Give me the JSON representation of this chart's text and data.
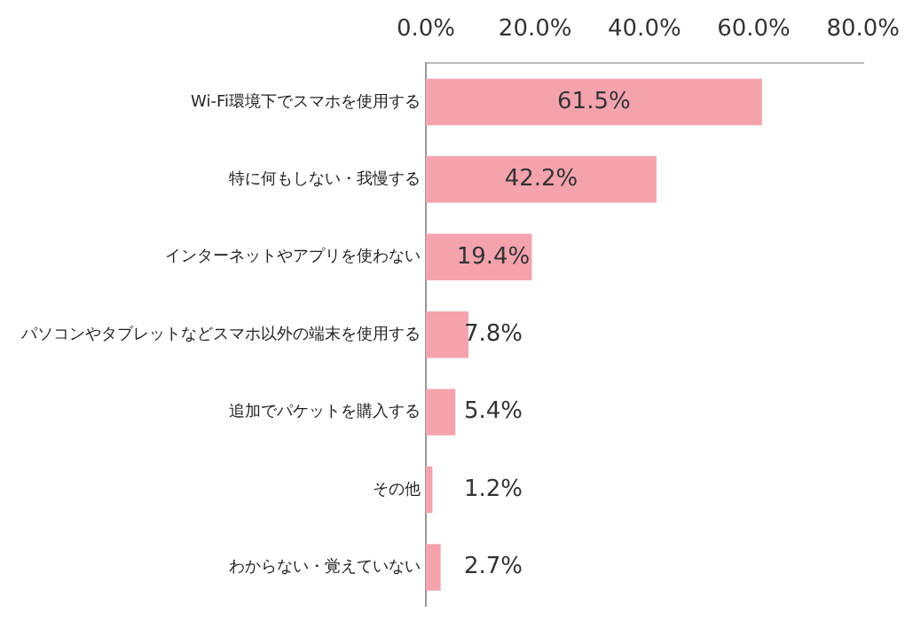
{
  "chart_data": {
    "type": "bar",
    "orientation": "horizontal",
    "categories": [
      "Wi-Fi環境下でスマホを使用する",
      "特に何もしない・我慢する",
      "インターネットやアプリを使わない",
      "パソコンやタブレットなどスマホ以外の端末を使用する",
      "追加でパケットを購入する",
      "その他",
      "わからない・覚えていない"
    ],
    "values": [
      61.5,
      42.2,
      19.4,
      7.8,
      5.4,
      1.2,
      2.7
    ],
    "value_labels": [
      "61.5%",
      "42.2%",
      "19.4%",
      "7.8%",
      "5.4%",
      "1.2%",
      "2.7%"
    ],
    "color": "#f4a3ad",
    "xlim": [
      0,
      80
    ],
    "xticks": [
      {
        "value": 0,
        "label": "0.0%"
      },
      {
        "value": 20,
        "label": "20.0%"
      },
      {
        "value": 40,
        "label": "40.0%"
      },
      {
        "value": 60,
        "label": "60.0%"
      },
      {
        "value": 80,
        "label": "80.0%"
      }
    ],
    "grid": false
  }
}
